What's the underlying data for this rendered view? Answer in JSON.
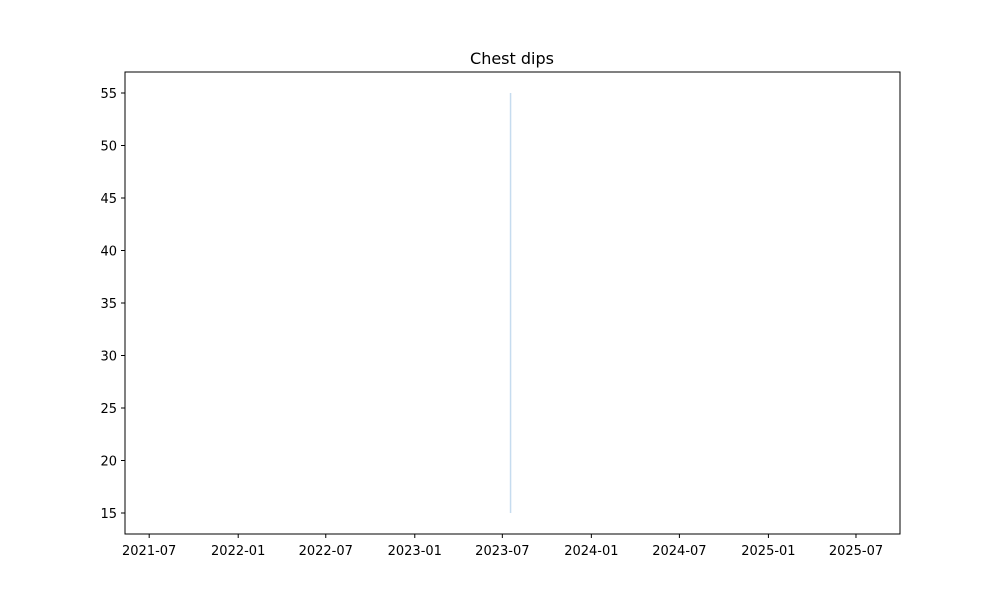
{
  "chart_data": {
    "type": "line",
    "title": "Chest dips",
    "xlabel": "",
    "ylabel": "",
    "x_axis_type": "date",
    "xlim": [
      "2021-05-12",
      "2025-09-30"
    ],
    "ylim": [
      13.0,
      57.0
    ],
    "x_ticks": [
      "2021-07",
      "2022-01",
      "2022-07",
      "2023-01",
      "2023-07",
      "2024-01",
      "2024-07",
      "2025-01",
      "2025-07"
    ],
    "y_ticks": [
      15,
      20,
      25,
      30,
      35,
      40,
      45,
      50,
      55
    ],
    "grid": false,
    "legend": false,
    "series": [
      {
        "color": "#c6dcef",
        "points": [
          {
            "x": "2023-07-18",
            "y": 15
          },
          {
            "x": "2023-07-18",
            "y": 55
          }
        ]
      }
    ]
  }
}
